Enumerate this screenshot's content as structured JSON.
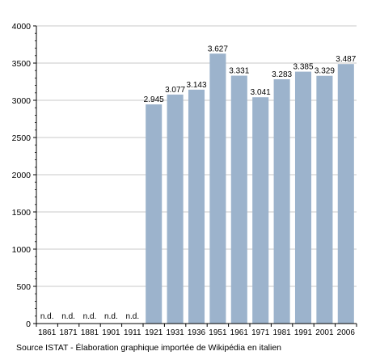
{
  "chart_data": {
    "type": "bar",
    "categories": [
      "1861",
      "1871",
      "1881",
      "1901",
      "1911",
      "1921",
      "1931",
      "1936",
      "1951",
      "1961",
      "1971",
      "1981",
      "1991",
      "2001",
      "2006"
    ],
    "values": [
      null,
      null,
      null,
      null,
      null,
      2945,
      3077,
      3143,
      3627,
      3331,
      3041,
      3283,
      3385,
      3329,
      3487
    ],
    "value_labels": [
      "n.d.",
      "n.d.",
      "n.d.",
      "n.d.",
      "n.d.",
      "2.945",
      "3.077",
      "3.143",
      "3.627",
      "3.331",
      "3.041",
      "3.283",
      "3.385",
      "3.329",
      "3.487"
    ],
    "y_ticks": [
      "0",
      "500",
      "1000",
      "1500",
      "2000",
      "2500",
      "3000",
      "3500",
      "4000"
    ],
    "ylim": [
      0,
      4000
    ],
    "grid": true,
    "bar_color": "#9cb3cc"
  },
  "source_note": "Source ISTAT - Élaboration graphique importée de Wikipédia en italien"
}
